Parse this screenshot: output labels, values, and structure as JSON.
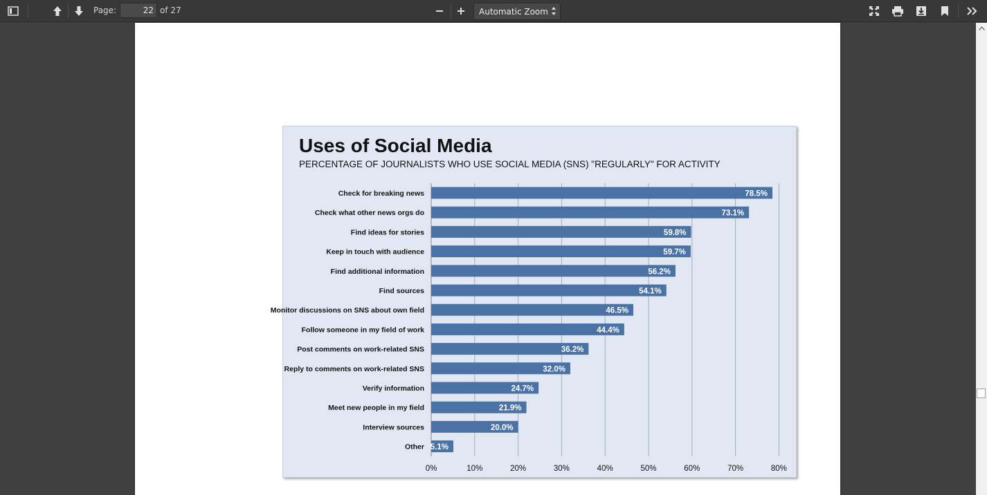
{
  "toolbar": {
    "page_label": "Page:",
    "page_number": "22",
    "page_total": "of 27",
    "zoom": "Automatic Zoom",
    "icons": [
      "sidebar-toggle-icon",
      "arrow-up-icon",
      "arrow-down-icon",
      "zoom-out-icon",
      "zoom-in-icon",
      "presentation-mode-icon",
      "print-icon",
      "download-icon",
      "bookmark-icon",
      "tools-icon"
    ]
  },
  "chart_data": {
    "type": "bar",
    "orientation": "horizontal",
    "title": "Uses of Social Media",
    "subtitle": "PERCENTAGE OF JOURNALISTS WHO USE SOCIAL MEDIA (SNS) \"REGULARLY\" FOR ACTIVITY",
    "categories": [
      "Check for breaking news",
      "Check what other news orgs do",
      "Find ideas for stories",
      "Keep in touch with audience",
      "Find additional information",
      "Find sources",
      "Monitor discussions on SNS about own field",
      "Follow someone in my field of work",
      "Post comments on work-related SNS",
      "Reply to comments on work-related SNS",
      "Verify information",
      "Meet new people in my field",
      "Interview sources",
      "Other"
    ],
    "values": [
      78.5,
      73.1,
      59.8,
      59.7,
      56.2,
      54.1,
      46.5,
      44.4,
      36.2,
      32.0,
      24.7,
      21.9,
      20.0,
      5.1
    ],
    "value_labels": [
      "78.5%",
      "73.1%",
      "59.8%",
      "59.7%",
      "56.2%",
      "54.1%",
      "46.5%",
      "44.4%",
      "36.2%",
      "32.0%",
      "24.7%",
      "21.9%",
      "20.0%",
      "5.1%"
    ],
    "x_ticks": [
      "0%",
      "10%",
      "20%",
      "30%",
      "40%",
      "50%",
      "60%",
      "70%",
      "80%"
    ],
    "xlim": [
      0,
      80
    ],
    "grid": true,
    "colors": {
      "bar": "#4a72a4",
      "background": "#e1e8f3",
      "grid": "#a4acb8"
    }
  }
}
